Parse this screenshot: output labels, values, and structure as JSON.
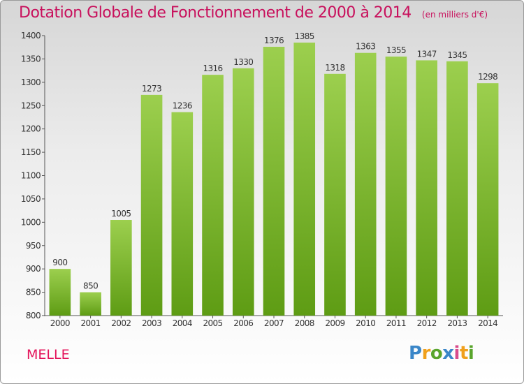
{
  "header": {
    "title": "Dotation Globale de Fonctionnement de 2000 à 2014",
    "unit": "(en milliers d'€)"
  },
  "footer": {
    "commune": "MELLE",
    "brand": [
      "P",
      "r",
      "o",
      "x",
      "i",
      "t",
      "i"
    ]
  },
  "colors": {
    "title": "#c8105c",
    "bar_top": "#9ccf4e",
    "bar_bottom": "#5e9c14"
  },
  "chart_data": {
    "type": "bar",
    "title": "Dotation Globale de Fonctionnement de 2000 à 2014",
    "subtitle": "(en milliers d'€)",
    "xlabel": "",
    "ylabel": "",
    "categories": [
      "2000",
      "2001",
      "2002",
      "2003",
      "2004",
      "2005",
      "2006",
      "2007",
      "2008",
      "2009",
      "2010",
      "2011",
      "2012",
      "2013",
      "2014"
    ],
    "values": [
      900,
      850,
      1005,
      1273,
      1236,
      1316,
      1330,
      1376,
      1385,
      1318,
      1363,
      1355,
      1347,
      1345,
      1298
    ],
    "ylim": [
      800,
      1400
    ],
    "yticks": [
      800,
      850,
      900,
      950,
      1000,
      1050,
      1100,
      1150,
      1200,
      1250,
      1300,
      1350,
      1400
    ],
    "grid": false,
    "legend": "none"
  }
}
